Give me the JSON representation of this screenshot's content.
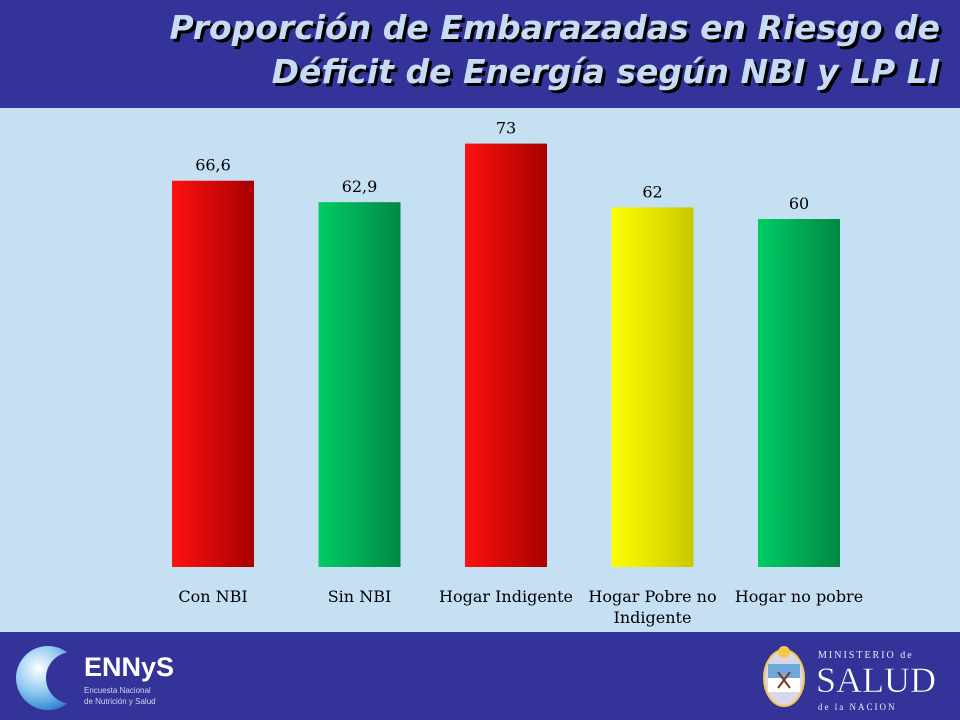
{
  "title": {
    "line1": "Proporción de Embarazadas en Riesgo de",
    "line2": "Déficit de Energía según NBI y LP LI"
  },
  "colors": {
    "header_bg": "#333399",
    "plot_bg": "#c5dff3",
    "title_text": "#c7dcf4",
    "red": "#e00000",
    "green": "#00a955",
    "yellow": "#e6e600"
  },
  "chart_data": {
    "type": "bar",
    "categories": [
      "Con NBI",
      "Sin NBI",
      "Hogar Indigente",
      "Hogar Pobre no Indigente",
      "Hogar no pobre"
    ],
    "category_lines": [
      [
        "Con NBI"
      ],
      [
        "Sin NBI"
      ],
      [
        "Hogar Indigente"
      ],
      [
        "Hogar Pobre no",
        "Indigente"
      ],
      [
        "Hogar no pobre"
      ]
    ],
    "values": [
      66.6,
      62.9,
      73,
      62,
      60
    ],
    "data_labels": [
      "66,6",
      "62,9",
      "73",
      "62",
      "60"
    ],
    "bar_colors": [
      "red",
      "green",
      "red",
      "yellow",
      "green"
    ],
    "ylim": [
      0,
      75
    ],
    "grid": false,
    "legend": false,
    "xlabel": "",
    "ylabel": ""
  },
  "footer": {
    "left_logo": {
      "icon": "moon-logo-icon",
      "name": "ENNyS",
      "subtitle_line1": "Encuesta Nacional",
      "subtitle_line2": "de Nutrición y Salud"
    },
    "right_logo": {
      "icon": "national-shield-icon",
      "line1": "MINISTERIO de",
      "line2": "SALUD",
      "line3": "de la NACION"
    }
  }
}
